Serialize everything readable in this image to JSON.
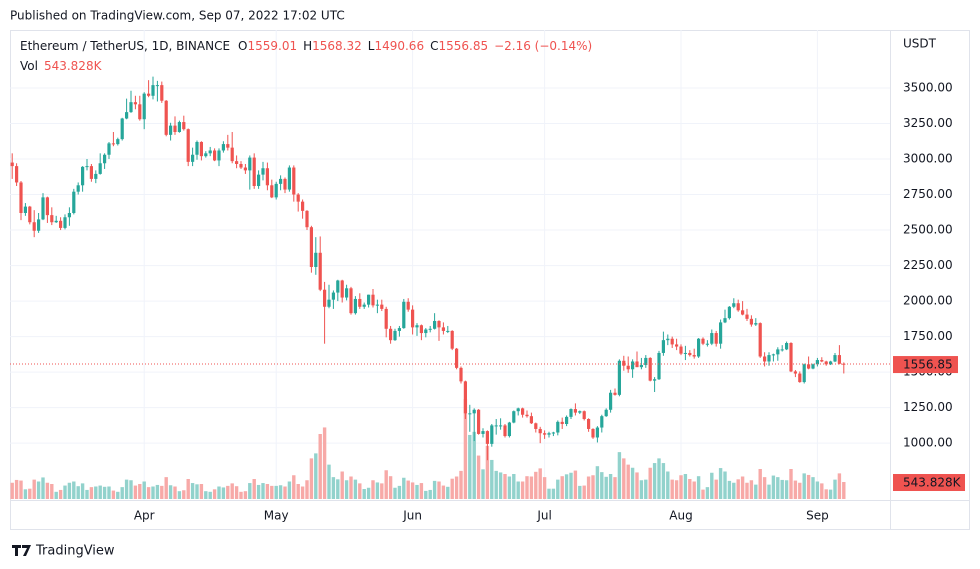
{
  "published": "Published on TradingView.com, Sep 07, 2022 17:02 UTC",
  "brand": "TradingView",
  "chart_data": {
    "type": "candlestick",
    "symbol": "Ethereum / TetherUS, 1D, BINANCE",
    "ohlc_letters": [
      "O",
      "H",
      "L",
      "C"
    ],
    "change_label": "−2.16 (−0.14%)",
    "volume_title": "Vol",
    "volume_label": "543.828K",
    "currency": "USDT",
    "up_color": "#26a69a",
    "down_color": "#ef5350",
    "volume_up_color": "#92d2cc",
    "volume_down_color": "#f7a9a7",
    "grid": true,
    "xlim": [
      -0.5,
      199.5
    ],
    "xticks": [
      {
        "value": 30,
        "label": "Apr"
      },
      {
        "value": 60,
        "label": "May"
      },
      {
        "value": 91,
        "label": "Jun"
      },
      {
        "value": 121,
        "label": "Jul"
      },
      {
        "value": 152,
        "label": "Aug"
      },
      {
        "value": 183,
        "label": "Sep"
      }
    ],
    "ylim": [
      600,
      3908
    ],
    "yticks": [
      {
        "value": 1000,
        "label": "1000.00"
      },
      {
        "value": 1250,
        "label": "1250.00"
      },
      {
        "value": 1500,
        "label": "1500.00"
      },
      {
        "value": 1750,
        "label": "1750.00"
      },
      {
        "value": 2000,
        "label": "2000.00"
      },
      {
        "value": 2250,
        "label": "2250.00"
      },
      {
        "value": 2500,
        "label": "2500.00"
      },
      {
        "value": 2750,
        "label": "2750.00"
      },
      {
        "value": 3000,
        "label": "3000.00"
      },
      {
        "value": 3250,
        "label": "3250.00"
      },
      {
        "value": 3500,
        "label": "3500.00"
      }
    ],
    "candles": [
      [
        2975,
        3040,
        2860,
        2950
      ],
      [
        2950,
        2970,
        2810,
        2835
      ],
      [
        2835,
        2845,
        2570,
        2620
      ],
      [
        2620,
        2690,
        2600,
        2665
      ],
      [
        2665,
        2670,
        2540,
        2555
      ],
      [
        2555,
        2640,
        2450,
        2495
      ],
      [
        2495,
        2620,
        2480,
        2575
      ],
      [
        2575,
        2760,
        2570,
        2730
      ],
      [
        2730,
        2735,
        2550,
        2605
      ],
      [
        2605,
        2660,
        2535,
        2555
      ],
      [
        2555,
        2600,
        2550,
        2565
      ],
      [
        2565,
        2590,
        2500,
        2515
      ],
      [
        2515,
        2610,
        2505,
        2590
      ],
      [
        2590,
        2660,
        2530,
        2620
      ],
      [
        2620,
        2790,
        2610,
        2770
      ],
      [
        2770,
        2835,
        2750,
        2815
      ],
      [
        2815,
        2950,
        2770,
        2945
      ],
      [
        2945,
        3000,
        2920,
        2950
      ],
      [
        2950,
        2965,
        2840,
        2860
      ],
      [
        2860,
        2920,
        2830,
        2895
      ],
      [
        2895,
        3040,
        2890,
        2970
      ],
      [
        2970,
        3040,
        2930,
        3030
      ],
      [
        3030,
        3120,
        3000,
        3110
      ],
      [
        3110,
        3190,
        3090,
        3105
      ],
      [
        3105,
        3150,
        3095,
        3140
      ],
      [
        3140,
        3290,
        3130,
        3285
      ],
      [
        3285,
        3425,
        3280,
        3330
      ],
      [
        3330,
        3480,
        3325,
        3400
      ],
      [
        3400,
        3445,
        3350,
        3385
      ],
      [
        3385,
        3445,
        3270,
        3280
      ],
      [
        3280,
        3470,
        3210,
        3460
      ],
      [
        3460,
        3555,
        3435,
        3445
      ],
      [
        3445,
        3580,
        3420,
        3520
      ],
      [
        3520,
        3550,
        3405,
        3520
      ],
      [
        3520,
        3545,
        3395,
        3410
      ],
      [
        3410,
        3415,
        3160,
        3170
      ],
      [
        3170,
        3255,
        3130,
        3235
      ],
      [
        3235,
        3300,
        3170,
        3190
      ],
      [
        3190,
        3270,
        3185,
        3260
      ],
      [
        3260,
        3305,
        3200,
        3210
      ],
      [
        3210,
        3215,
        2950,
        2980
      ],
      [
        2980,
        3080,
        2950,
        3030
      ],
      [
        3030,
        3130,
        2995,
        3120
      ],
      [
        3120,
        3125,
        2990,
        3020
      ],
      [
        3020,
        3055,
        3010,
        3040
      ],
      [
        3040,
        3085,
        3020,
        3060
      ],
      [
        3060,
        3075,
        2985,
        2990
      ],
      [
        2990,
        3075,
        2950,
        3060
      ],
      [
        3060,
        3125,
        3045,
        3105
      ],
      [
        3105,
        3170,
        3060,
        3080
      ],
      [
        3080,
        3190,
        2970,
        2985
      ],
      [
        2985,
        3025,
        2935,
        2965
      ],
      [
        2965,
        2985,
        2930,
        2940
      ],
      [
        2940,
        2965,
        2895,
        2920
      ],
      [
        2920,
        3025,
        2785,
        3010
      ],
      [
        3010,
        3040,
        2790,
        2810
      ],
      [
        2810,
        2920,
        2790,
        2890
      ],
      [
        2890,
        2980,
        2850,
        2935
      ],
      [
        2935,
        2975,
        2780,
        2815
      ],
      [
        2815,
        2855,
        2725,
        2730
      ],
      [
        2730,
        2840,
        2715,
        2825
      ],
      [
        2825,
        2885,
        2780,
        2860
      ],
      [
        2860,
        2870,
        2760,
        2785
      ],
      [
        2785,
        2955,
        2770,
        2940
      ],
      [
        2940,
        2955,
        2700,
        2750
      ],
      [
        2750,
        2760,
        2630,
        2700
      ],
      [
        2700,
        2715,
        2580,
        2635
      ],
      [
        2635,
        2640,
        2500,
        2520
      ],
      [
        2520,
        2530,
        2200,
        2240
      ],
      [
        2240,
        2450,
        2185,
        2340
      ],
      [
        2340,
        2455,
        2070,
        2080
      ],
      [
        2080,
        2135,
        1700,
        1960
      ],
      [
        1960,
        2115,
        1950,
        2010
      ],
      [
        2010,
        2075,
        1945,
        2060
      ],
      [
        2060,
        2150,
        2000,
        2145
      ],
      [
        2145,
        2150,
        1990,
        2025
      ],
      [
        2025,
        2115,
        2005,
        2090
      ],
      [
        2090,
        2100,
        1905,
        1915
      ],
      [
        1915,
        2035,
        1905,
        2015
      ],
      [
        2015,
        2055,
        1945,
        1960
      ],
      [
        1960,
        1990,
        1945,
        1975
      ],
      [
        1975,
        2045,
        1955,
        2045
      ],
      [
        2045,
        2085,
        1955,
        1970
      ],
      [
        1970,
        2010,
        1915,
        1975
      ],
      [
        1975,
        2010,
        1930,
        1945
      ],
      [
        1945,
        1960,
        1745,
        1805
      ],
      [
        1805,
        1825,
        1700,
        1725
      ],
      [
        1725,
        1805,
        1720,
        1790
      ],
      [
        1790,
        1825,
        1750,
        1810
      ],
      [
        1810,
        2015,
        1805,
        1995
      ],
      [
        1995,
        2020,
        1925,
        1940
      ],
      [
        1940,
        1970,
        1765,
        1815
      ],
      [
        1815,
        1845,
        1755,
        1830
      ],
      [
        1830,
        1835,
        1725,
        1775
      ],
      [
        1775,
        1810,
        1745,
        1800
      ],
      [
        1800,
        1825,
        1780,
        1805
      ],
      [
        1805,
        1915,
        1800,
        1860
      ],
      [
        1860,
        1865,
        1720,
        1815
      ],
      [
        1815,
        1850,
        1765,
        1790
      ],
      [
        1790,
        1825,
        1775,
        1790
      ],
      [
        1790,
        1795,
        1655,
        1665
      ],
      [
        1665,
        1670,
        1520,
        1530
      ],
      [
        1530,
        1540,
        1420,
        1435
      ],
      [
        1435,
        1440,
        1170,
        1210
      ],
      [
        1210,
        1270,
        1080,
        1210
      ],
      [
        1210,
        1245,
        1015,
        1235
      ],
      [
        1235,
        1240,
        1060,
        1065
      ],
      [
        1065,
        1105,
        1040,
        1085
      ],
      [
        1085,
        1090,
        880,
        995
      ],
      [
        995,
        1135,
        975,
        1125
      ],
      [
        1125,
        1170,
        1060,
        1125
      ],
      [
        1125,
        1175,
        1095,
        1125
      ],
      [
        1125,
        1135,
        1040,
        1050
      ],
      [
        1050,
        1150,
        1040,
        1145
      ],
      [
        1145,
        1230,
        1140,
        1225
      ],
      [
        1225,
        1250,
        1195,
        1245
      ],
      [
        1245,
        1250,
        1180,
        1200
      ],
      [
        1200,
        1230,
        1180,
        1190
      ],
      [
        1190,
        1215,
        1135,
        1140
      ],
      [
        1140,
        1145,
        1075,
        1100
      ],
      [
        1100,
        1115,
        1000,
        1070
      ],
      [
        1070,
        1090,
        1030,
        1060
      ],
      [
        1060,
        1080,
        1040,
        1070
      ],
      [
        1070,
        1080,
        1050,
        1075
      ],
      [
        1075,
        1160,
        1055,
        1150
      ],
      [
        1150,
        1180,
        1100,
        1135
      ],
      [
        1135,
        1195,
        1120,
        1185
      ],
      [
        1185,
        1245,
        1170,
        1240
      ],
      [
        1240,
        1280,
        1195,
        1215
      ],
      [
        1215,
        1230,
        1205,
        1225
      ],
      [
        1225,
        1230,
        1160,
        1170
      ],
      [
        1170,
        1175,
        1080,
        1100
      ],
      [
        1100,
        1105,
        1030,
        1040
      ],
      [
        1040,
        1120,
        1005,
        1110
      ],
      [
        1110,
        1200,
        1075,
        1190
      ],
      [
        1190,
        1245,
        1185,
        1235
      ],
      [
        1235,
        1375,
        1215,
        1355
      ],
      [
        1355,
        1385,
        1335,
        1340
      ],
      [
        1340,
        1590,
        1330,
        1580
      ],
      [
        1580,
        1615,
        1510,
        1545
      ],
      [
        1545,
        1610,
        1495,
        1520
      ],
      [
        1520,
        1590,
        1460,
        1575
      ],
      [
        1575,
        1645,
        1535,
        1535
      ],
      [
        1535,
        1600,
        1520,
        1550
      ],
      [
        1550,
        1620,
        1530,
        1600
      ],
      [
        1600,
        1605,
        1435,
        1440
      ],
      [
        1440,
        1465,
        1360,
        1450
      ],
      [
        1450,
        1650,
        1445,
        1635
      ],
      [
        1635,
        1785,
        1615,
        1725
      ],
      [
        1725,
        1765,
        1690,
        1735
      ],
      [
        1735,
        1750,
        1670,
        1695
      ],
      [
        1695,
        1735,
        1655,
        1680
      ],
      [
        1680,
        1695,
        1620,
        1630
      ],
      [
        1630,
        1685,
        1585,
        1635
      ],
      [
        1635,
        1655,
        1610,
        1620
      ],
      [
        1620,
        1665,
        1595,
        1610
      ],
      [
        1610,
        1740,
        1600,
        1735
      ],
      [
        1735,
        1745,
        1690,
        1700
      ],
      [
        1700,
        1725,
        1680,
        1700
      ],
      [
        1700,
        1800,
        1690,
        1775
      ],
      [
        1775,
        1790,
        1680,
        1700
      ],
      [
        1700,
        1870,
        1665,
        1850
      ],
      [
        1850,
        1940,
        1845,
        1880
      ],
      [
        1880,
        1965,
        1870,
        1960
      ],
      [
        1960,
        2020,
        1950,
        1985
      ],
      [
        1985,
        2010,
        1925,
        1935
      ],
      [
        1935,
        2000,
        1900,
        1905
      ],
      [
        1905,
        1945,
        1860,
        1875
      ],
      [
        1875,
        1900,
        1820,
        1835
      ],
      [
        1835,
        1880,
        1825,
        1845
      ],
      [
        1845,
        1850,
        1600,
        1610
      ],
      [
        1610,
        1640,
        1540,
        1575
      ],
      [
        1575,
        1640,
        1545,
        1620
      ],
      [
        1620,
        1630,
        1575,
        1625
      ],
      [
        1625,
        1675,
        1580,
        1660
      ],
      [
        1660,
        1690,
        1645,
        1660
      ],
      [
        1660,
        1715,
        1655,
        1705
      ],
      [
        1705,
        1710,
        1500,
        1505
      ],
      [
        1505,
        1515,
        1465,
        1490
      ],
      [
        1490,
        1505,
        1425,
        1430
      ],
      [
        1430,
        1560,
        1420,
        1555
      ],
      [
        1555,
        1610,
        1520,
        1525
      ],
      [
        1525,
        1560,
        1520,
        1555
      ],
      [
        1555,
        1600,
        1540,
        1585
      ],
      [
        1585,
        1605,
        1570,
        1575
      ],
      [
        1575,
        1580,
        1545,
        1555
      ],
      [
        1555,
        1580,
        1550,
        1575
      ],
      [
        1575,
        1635,
        1570,
        1620
      ],
      [
        1620,
        1690,
        1555,
        1559.01
      ],
      [
        1559.01,
        1568.32,
        1490.66,
        1556.85
      ]
    ],
    "volume": [
      520000,
      610000,
      590000,
      310000,
      330000,
      620000,
      560000,
      690000,
      520000,
      480000,
      230000,
      290000,
      430000,
      520000,
      560000,
      410000,
      500000,
      290000,
      380000,
      400000,
      430000,
      390000,
      400000,
      270000,
      230000,
      380000,
      620000,
      600000,
      430000,
      480000,
      560000,
      380000,
      400000,
      450000,
      420000,
      700000,
      440000,
      400000,
      250000,
      280000,
      640000,
      510000,
      470000,
      480000,
      250000,
      230000,
      310000,
      400000,
      370000,
      420000,
      500000,
      410000,
      230000,
      250000,
      510000,
      640000,
      450000,
      510000,
      480000,
      420000,
      420000,
      440000,
      400000,
      560000,
      760000,
      480000,
      400000,
      600000,
      1300000,
      1460000,
      2080000,
      2290000,
      1100000,
      700000,
      630000,
      880000,
      600000,
      720000,
      620000,
      500000,
      320000,
      360000,
      600000,
      530000,
      500000,
      920000,
      730000,
      360000,
      420000,
      680000,
      590000,
      530000,
      450000,
      510000,
      260000,
      290000,
      580000,
      560000,
      430000,
      390000,
      650000,
      720000,
      900000,
      3200000,
      2050000,
      2150000,
      1390000,
      950000,
      1700000,
      1250000,
      900000,
      850000,
      800000,
      720000,
      800000,
      560000,
      560000,
      730000,
      720000,
      870000,
      980000,
      700000,
      330000,
      330000,
      620000,
      730000,
      790000,
      840000,
      910000,
      420000,
      430000,
      720000,
      760000,
      1050000,
      860000,
      710000,
      800000,
      700000,
      1500000,
      1300000,
      1100000,
      1000000,
      850000,
      600000,
      620000,
      1000000,
      1150000,
      1300000,
      1150000,
      880000,
      620000,
      600000,
      760000,
      800000,
      640000,
      560000,
      730000,
      300000,
      380000,
      840000,
      620000,
      990000,
      880000,
      580000,
      520000,
      630000,
      720000,
      520000,
      600000,
      460000,
      960000,
      700000,
      460000,
      750000,
      700000,
      610000,
      600000,
      960000,
      590000,
      520000,
      820000,
      770000,
      700000,
      560000,
      500000,
      310000,
      300000,
      620000,
      820000,
      543828
    ]
  }
}
